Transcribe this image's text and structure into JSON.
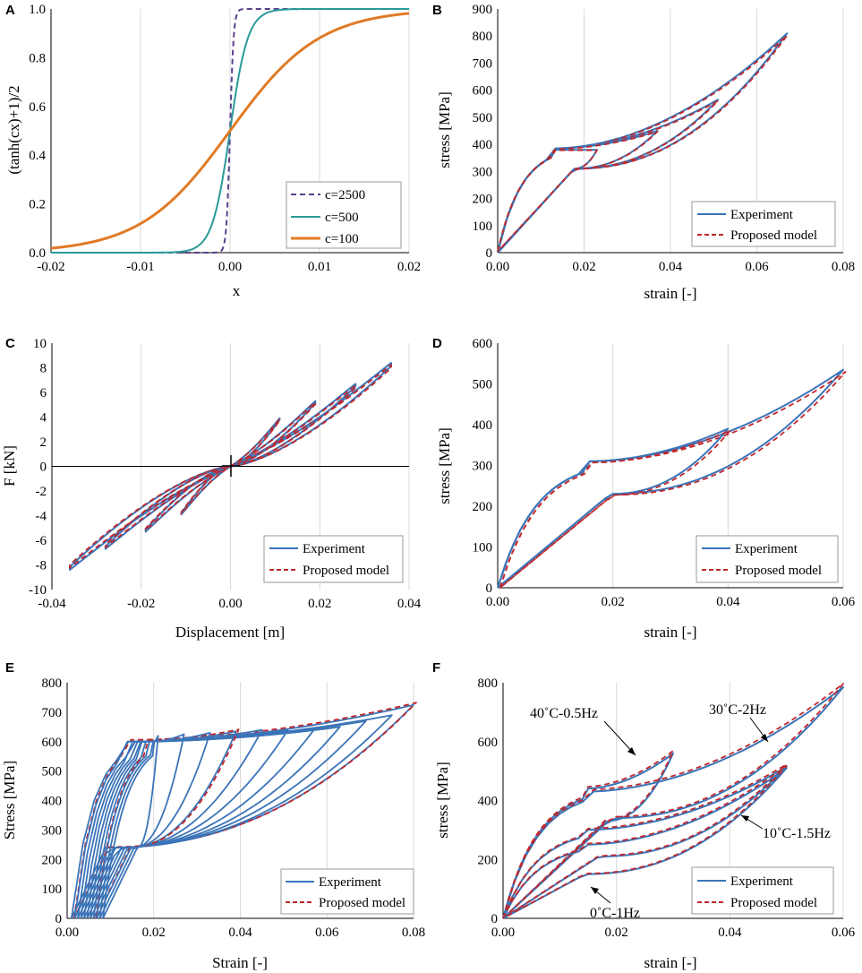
{
  "chart_data": [
    {
      "panel": "A",
      "type": "line",
      "xlabel": "x",
      "ylabel": "(tanh(cx)+1)/2",
      "xlim": [
        -0.02,
        0.02
      ],
      "ylim": [
        0,
        1.0
      ],
      "xticks": [
        -0.02,
        -0.01,
        0.0,
        0.01,
        0.02
      ],
      "xtick_labels": [
        "-0.02",
        "-0.01",
        "0.00",
        "0.01",
        "0.02"
      ],
      "yticks": [
        0,
        0.2,
        0.4,
        0.6,
        0.8,
        1.0
      ],
      "ytick_labels": [
        "0.0",
        "0.2",
        "0.4",
        "0.6",
        "0.8",
        "1.0"
      ],
      "grid": "vertical",
      "legend_position": "bottom-right",
      "series": [
        {
          "name": "c=2500",
          "c": 2500,
          "color": "#5b3f8c",
          "style": "dashed"
        },
        {
          "name": "c=500",
          "c": 500,
          "color": "#2a9a98",
          "style": "solid"
        },
        {
          "name": "c=100",
          "c": 100,
          "color": "#e07a25",
          "style": "solid-thick"
        }
      ]
    },
    {
      "panel": "B",
      "type": "line",
      "xlabel": "strain [-]",
      "ylabel": "stress [MPa]",
      "xlim": [
        0,
        0.08
      ],
      "ylim": [
        0,
        900
      ],
      "xticks": [
        0,
        0.02,
        0.04,
        0.06,
        0.08
      ],
      "xtick_labels": [
        "0.00",
        "0.02",
        "0.04",
        "0.06",
        "0.08"
      ],
      "yticks": [
        0,
        100,
        200,
        300,
        400,
        500,
        600,
        700,
        800,
        900
      ],
      "ytick_labels": [
        "0",
        "100",
        "200",
        "300",
        "400",
        "500",
        "600",
        "700",
        "800",
        "900"
      ],
      "grid": "vertical",
      "legend_position": "bottom-right",
      "legend": [
        "Experiment",
        "Proposed model"
      ],
      "loops": [
        {
          "max_strain": 0.067,
          "max_stress": 810,
          "load_plateau": 385,
          "unload_plateau": 310
        },
        {
          "max_strain": 0.051,
          "max_stress": 565,
          "load_plateau": 385,
          "unload_plateau": 310
        },
        {
          "max_strain": 0.037,
          "max_stress": 450,
          "load_plateau": 385,
          "unload_plateau": 310
        },
        {
          "max_strain": 0.023,
          "max_stress": 380,
          "load_plateau": 385,
          "unload_plateau": 310
        }
      ]
    },
    {
      "panel": "C",
      "type": "line",
      "xlabel": "Displacement [m]",
      "ylabel": "F [kN]",
      "xlim": [
        -0.04,
        0.04
      ],
      "ylim": [
        -10,
        10
      ],
      "xticks": [
        -0.04,
        -0.02,
        0.0,
        0.02,
        0.04
      ],
      "xtick_labels": [
        "-0.04",
        "-0.02",
        "0.00",
        "0.02",
        "0.04"
      ],
      "yticks": [
        -10,
        -8,
        -6,
        -4,
        -2,
        0,
        2,
        4,
        6,
        8,
        10
      ],
      "ytick_labels": [
        "-10",
        "-8",
        "-6",
        "-4",
        "-2",
        "0",
        "2",
        "4",
        "6",
        "8",
        "10"
      ],
      "grid": "vertical",
      "legend_position": "bottom-right",
      "legend": [
        "Experiment",
        "Proposed model"
      ],
      "loops": [
        {
          "max_disp": 0.036,
          "max_force": 8.4
        },
        {
          "max_disp": 0.028,
          "max_force": 6.7
        },
        {
          "max_disp": 0.019,
          "max_force": 5.3
        },
        {
          "max_disp": 0.011,
          "max_force": 3.9
        }
      ]
    },
    {
      "panel": "D",
      "type": "line",
      "xlabel": "strain [-]",
      "ylabel": "stress [MPa]",
      "xlim": [
        0,
        0.06
      ],
      "ylim": [
        0,
        600
      ],
      "xticks": [
        0,
        0.02,
        0.04,
        0.06
      ],
      "xtick_labels": [
        "0.00",
        "0.02",
        "0.04",
        "0.06"
      ],
      "yticks": [
        0,
        100,
        200,
        300,
        400,
        500,
        600
      ],
      "ytick_labels": [
        "0",
        "100",
        "200",
        "300",
        "400",
        "500",
        "600"
      ],
      "grid": "vertical",
      "legend_position": "bottom-right",
      "legend": [
        "Experiment",
        "Proposed model"
      ],
      "loops": [
        {
          "max_strain": 0.06,
          "max_stress": 535,
          "load_plateau": 310,
          "unload_plateau": 230
        },
        {
          "max_strain": 0.04,
          "max_stress": 390,
          "load_plateau": 310,
          "unload_plateau": 230
        }
      ]
    },
    {
      "panel": "E",
      "type": "line",
      "xlabel": "Strain [-]",
      "ylabel": "Stress [MPa]",
      "xlim": [
        0,
        0.08
      ],
      "ylim": [
        0,
        800
      ],
      "xticks": [
        0,
        0.02,
        0.04,
        0.06,
        0.08
      ],
      "xtick_labels": [
        "0.00",
        "0.02",
        "0.04",
        "0.06",
        "0.08"
      ],
      "yticks": [
        0,
        100,
        200,
        300,
        400,
        500,
        600,
        700,
        800
      ],
      "ytick_labels": [
        "0",
        "100",
        "200",
        "300",
        "400",
        "500",
        "600",
        "700",
        "800"
      ],
      "grid": "vertical",
      "legend_position": "bottom-right",
      "legend": [
        "Experiment",
        "Proposed model"
      ],
      "loops": [
        {
          "max_strain": 0.08,
          "max_stress": 725
        },
        {
          "max_strain": 0.075,
          "max_stress": 690
        },
        {
          "max_strain": 0.069,
          "max_stress": 670
        },
        {
          "max_strain": 0.063,
          "max_stress": 650
        },
        {
          "max_strain": 0.057,
          "max_stress": 640
        },
        {
          "max_strain": 0.051,
          "max_stress": 640
        },
        {
          "max_strain": 0.045,
          "max_stress": 640
        },
        {
          "max_strain": 0.039,
          "max_stress": 635
        },
        {
          "max_strain": 0.033,
          "max_stress": 630
        },
        {
          "max_strain": 0.027,
          "max_stress": 625
        },
        {
          "max_strain": 0.021,
          "max_stress": 620
        }
      ]
    },
    {
      "panel": "F",
      "type": "line",
      "xlabel": "strain [-]",
      "ylabel": "stress [MPa]",
      "xlim": [
        0,
        0.06
      ],
      "ylim": [
        0,
        800
      ],
      "xticks": [
        0,
        0.02,
        0.04,
        0.06
      ],
      "xtick_labels": [
        "0.00",
        "0.02",
        "0.04",
        "0.06"
      ],
      "yticks": [
        0,
        200,
        400,
        600,
        800
      ],
      "ytick_labels": [
        "0",
        "200",
        "400",
        "600",
        "800"
      ],
      "grid": "vertical",
      "legend_position": "bottom-right",
      "legend": [
        "Experiment",
        "Proposed model"
      ],
      "annotations": [
        "40˚C-0.5Hz",
        "30˚C-2Hz",
        "10˚C-1.5Hz",
        "0˚C-1Hz"
      ],
      "loops": [
        {
          "label": "40˚C-0.5Hz",
          "max_strain": 0.03,
          "max_stress": 560
        },
        {
          "label": "30˚C-2Hz",
          "max_strain": 0.06,
          "max_stress": 785
        },
        {
          "label": "10˚C-1.5Hz",
          "max_strain": 0.05,
          "max_stress": 515
        },
        {
          "label": "0˚C-1Hz",
          "max_strain": 0.05,
          "max_stress": 510
        }
      ]
    }
  ],
  "colors": {
    "experiment": "#3b74b8",
    "model": "#c0282d"
  }
}
